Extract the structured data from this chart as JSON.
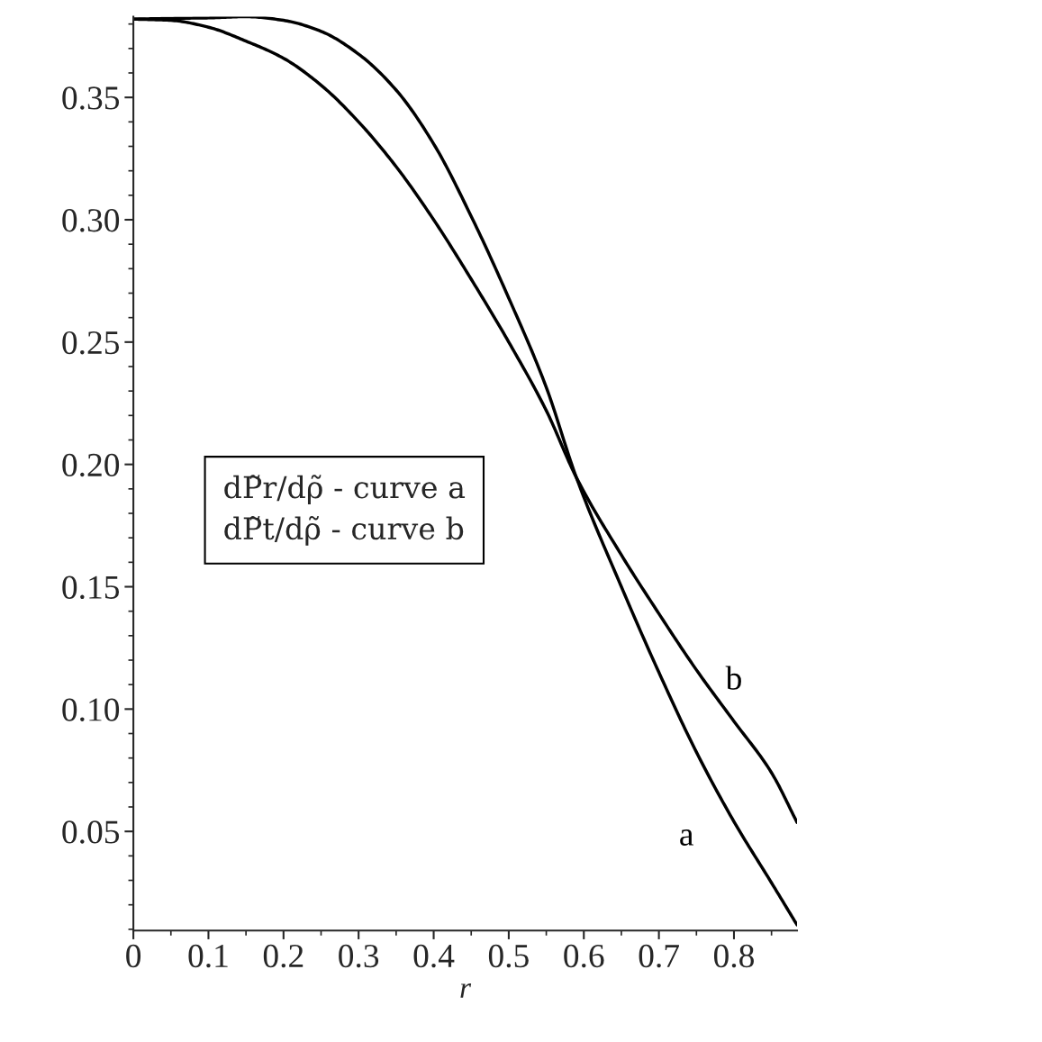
{
  "chart_data": {
    "type": "line",
    "xlabel": "r",
    "xlim": [
      0,
      0.884
    ],
    "ylim": [
      0.0095,
      0.383
    ],
    "xticks": [
      0,
      0.1,
      0.2,
      0.3,
      0.4,
      0.5,
      0.6,
      0.7,
      0.8
    ],
    "yticks": [
      {
        "value": 0.05,
        "label": "0.05"
      },
      {
        "value": 0.1,
        "label": "0.10"
      },
      {
        "value": 0.15,
        "label": "0.15"
      },
      {
        "value": 0.2,
        "label": "0.20"
      },
      {
        "value": 0.25,
        "label": "0.25"
      },
      {
        "value": 0.3,
        "label": "0.30"
      },
      {
        "value": 0.35,
        "label": "0.35"
      }
    ],
    "grid": false,
    "legend": false,
    "marker": "none",
    "line_style": "solid",
    "x": [
      0,
      0.05,
      0.1,
      0.15,
      0.2,
      0.25,
      0.3,
      0.35,
      0.4,
      0.45,
      0.5,
      0.55,
      0.59,
      0.65,
      0.7,
      0.75,
      0.8,
      0.85,
      0.884
    ],
    "series": [
      {
        "name": "a",
        "color": "#000000",
        "values": [
          0.382,
          0.3823,
          0.3825,
          0.383,
          0.3815,
          0.377,
          0.3677,
          0.353,
          0.331,
          0.3014,
          0.268,
          0.2315,
          0.1947,
          0.15,
          0.115,
          0.0824,
          0.054,
          0.029,
          0.0118
        ]
      },
      {
        "name": "b",
        "color": "#000000",
        "values": [
          0.382,
          0.3815,
          0.3787,
          0.373,
          0.366,
          0.355,
          0.34,
          0.3217,
          0.3,
          0.2757,
          0.25,
          0.222,
          0.1947,
          0.163,
          0.139,
          0.116,
          0.095,
          0.074,
          0.0537
        ]
      }
    ],
    "annotations": [
      "dP̃r/dρ̃ - curve a\ndP̃t/dρ̃ - curve b"
    ]
  }
}
